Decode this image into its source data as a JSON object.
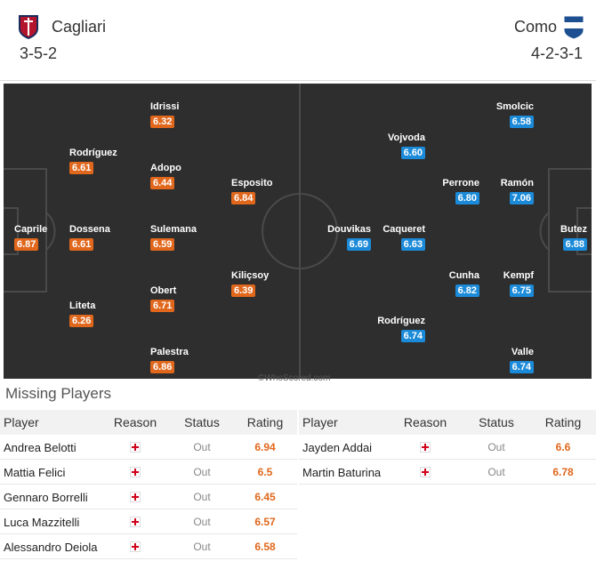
{
  "home": {
    "team": "Cagliari",
    "formation": "3-5-2",
    "players": [
      {
        "name": "Caprile",
        "rating": "6.87"
      },
      {
        "name": "Rodríguez",
        "rating": "6.61"
      },
      {
        "name": "Dossena",
        "rating": "6.61"
      },
      {
        "name": "Liteta",
        "rating": "6.26"
      },
      {
        "name": "Idrissi",
        "rating": "6.32"
      },
      {
        "name": "Adopo",
        "rating": "6.44"
      },
      {
        "name": "Sulemana",
        "rating": "6.59"
      },
      {
        "name": "Obert",
        "rating": "6.71"
      },
      {
        "name": "Palestra",
        "rating": "6.86"
      },
      {
        "name": "Esposito",
        "rating": "6.84"
      },
      {
        "name": "Kiliçsoy",
        "rating": "6.39"
      }
    ]
  },
  "away": {
    "team": "Como",
    "formation": "4-2-3-1",
    "players": [
      {
        "name": "Butez",
        "rating": "6.88"
      },
      {
        "name": "Smolcic",
        "rating": "6.58"
      },
      {
        "name": "Ramón",
        "rating": "7.06"
      },
      {
        "name": "Kempf",
        "rating": "6.75"
      },
      {
        "name": "Valle",
        "rating": "6.74"
      },
      {
        "name": "Perrone",
        "rating": "6.80"
      },
      {
        "name": "Cunha",
        "rating": "6.82"
      },
      {
        "name": "Vojvoda",
        "rating": "6.60"
      },
      {
        "name": "Caqueret",
        "rating": "6.63"
      },
      {
        "name": "Rodríguez",
        "rating": "6.74"
      },
      {
        "name": "Douvikas",
        "rating": "6.69"
      }
    ]
  },
  "watermark": "©WhoScored.com",
  "missing": {
    "title": "Missing Players",
    "headers": [
      "Player",
      "Reason",
      "Status",
      "Rating"
    ],
    "home": [
      [
        "Andrea Belotti",
        "Out",
        "6.94"
      ],
      [
        "Mattia Felici",
        "Out",
        "6.5"
      ],
      [
        "Gennaro Borrelli",
        "Out",
        "6.45"
      ],
      [
        "Luca Mazzitelli",
        "Out",
        "6.57"
      ],
      [
        "Alessandro Deiola",
        "Out",
        "6.58"
      ]
    ],
    "away": [
      [
        "Jayden Addai",
        "Out",
        "6.6"
      ],
      [
        "Martin Baturina",
        "Out",
        "6.78"
      ]
    ]
  }
}
